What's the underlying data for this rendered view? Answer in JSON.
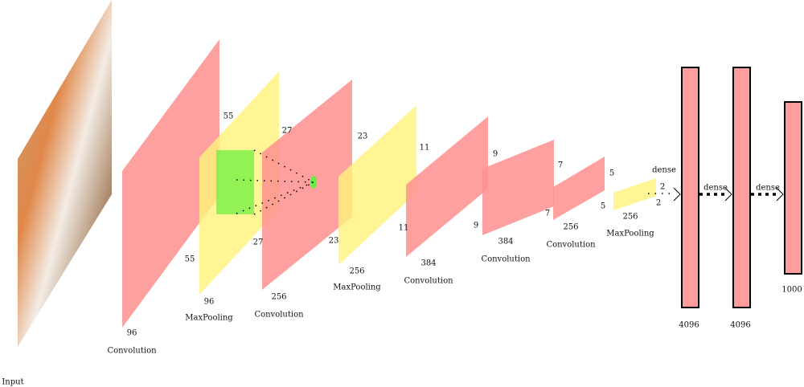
{
  "input": {
    "label": "Input"
  },
  "layers": [
    {
      "kind": "Convolution",
      "depth": 96,
      "size_top": 55,
      "size_bottom": 55
    },
    {
      "kind": "MaxPooling",
      "depth": 96,
      "size_top": 27,
      "size_bottom": 27
    },
    {
      "kind": "Convolution",
      "depth": 256,
      "size_top": 23,
      "size_bottom": 23
    },
    {
      "kind": "MaxPooling",
      "depth": 256,
      "size_top": 11,
      "size_bottom": 11
    },
    {
      "kind": "Convolution",
      "depth": 384,
      "size_top": 9,
      "size_bottom": 9
    },
    {
      "kind": "Convolution",
      "depth": 384,
      "size_top": 7,
      "size_bottom": 7
    },
    {
      "kind": "Convolution",
      "depth": 256,
      "size_top": 5,
      "size_bottom": 5
    },
    {
      "kind": "MaxPooling",
      "depth": 256,
      "size_top": 2,
      "size_bottom": 2
    }
  ],
  "dense": [
    {
      "label": "dense",
      "units": 4096
    },
    {
      "label": "dense",
      "units": 4096
    },
    {
      "label": "dense",
      "units": 1000
    }
  ]
}
